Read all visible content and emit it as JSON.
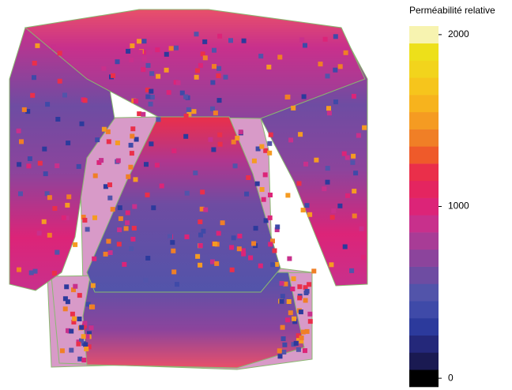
{
  "chart_data": {
    "type": "heatmap",
    "legend_title": "Perméabilité relative",
    "clim": [
      0,
      2000
    ],
    "cticks": [
      0,
      1000,
      2000
    ],
    "colors": [
      "#000000",
      "#1a1a52",
      "#24287a",
      "#2c3a9c",
      "#3f4aa8",
      "#5254aa",
      "#6e4ca2",
      "#8c449c",
      "#a83c96",
      "#c8308c",
      "#dc2478",
      "#e42560",
      "#ea2f4a",
      "#ef5a2a",
      "#f07f26",
      "#f59b22",
      "#f7b31d",
      "#f6c51c",
      "#f2d41c",
      "#ede01a",
      "#f7f3b0"
    ]
  }
}
